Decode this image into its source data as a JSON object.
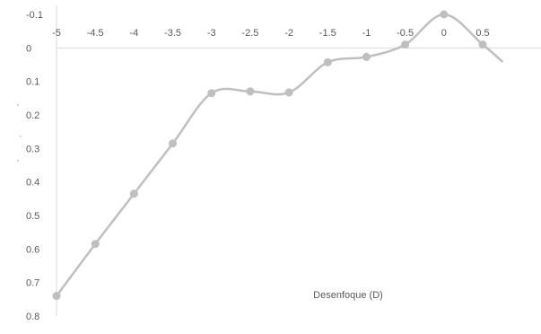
{
  "chart_data": {
    "type": "line",
    "title": "",
    "xlabel": "Desenfoque (D)",
    "ylabel": "",
    "x": [
      -5,
      -4.5,
      -4,
      -3.5,
      -3,
      -2.5,
      -2,
      -1.5,
      -1,
      -0.5,
      0,
      0.5,
      0.75
    ],
    "series": [
      {
        "name": "",
        "color": "#bfbfbf",
        "values": [
          0.74,
          0.585,
          0.435,
          0.285,
          0.135,
          0.13,
          0.133,
          0.043,
          0.027,
          -0.01,
          -0.1,
          -0.01,
          0.04
        ],
        "markers": [
          true,
          true,
          true,
          true,
          true,
          true,
          true,
          true,
          true,
          true,
          true,
          true,
          false
        ]
      }
    ],
    "xlim": [
      -5,
      0.75
    ],
    "ylim": [
      -0.1,
      0.8
    ],
    "y_reversed": true,
    "x_ticks": [
      "-5",
      "-4.5",
      "-4",
      "-3.5",
      "-3",
      "-2.5",
      "-2",
      "-1.5",
      "-1",
      "-0.5",
      "0",
      "0.5"
    ],
    "y_ticks": [
      "-0.1",
      "0",
      "0.1",
      "0.2",
      "0.3",
      "0.4",
      "0.5",
      "0.6",
      "0.7",
      "0.8"
    ],
    "grid": false,
    "legend": "none",
    "axis_color": "#d9d9d9",
    "tick_color": "#595959",
    "line_smoothed": true
  }
}
